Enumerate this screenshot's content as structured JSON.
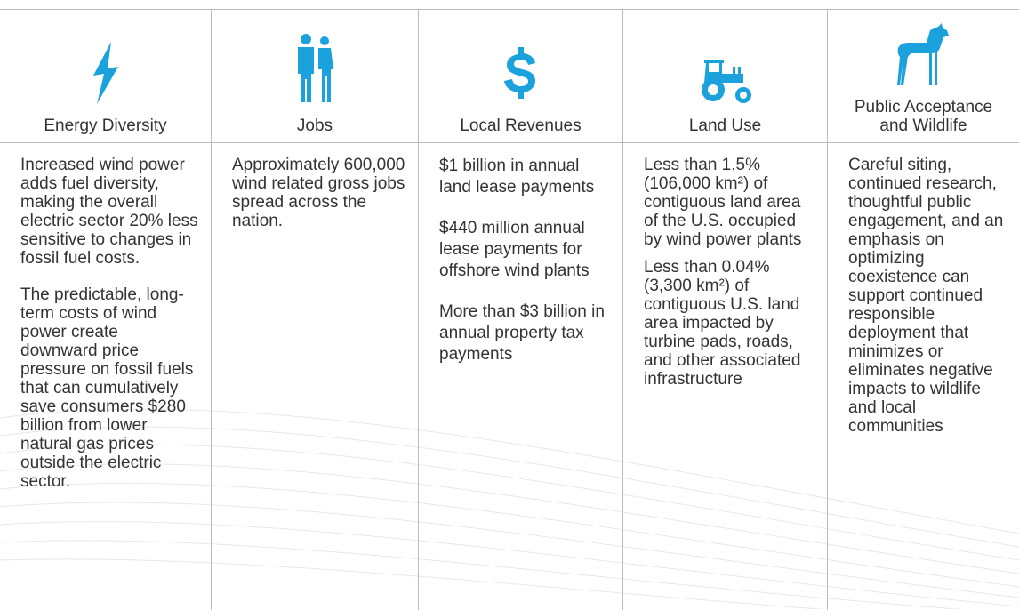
{
  "columns": [
    {
      "header": "Energy Diversity",
      "paragraphs": [
        "Increased wind power adds fuel diversity, making the overall electric sector 20% less sensitive to changes in fossil fuel costs.",
        "The predictable, long-term costs of wind power create downward price pressure on fossil fuels that can cumulatively save consumers $280 billion from lower natural gas prices outside the electric sector."
      ]
    },
    {
      "header": "Jobs",
      "paragraphs": [
        "Approximately 600,000 wind related gross jobs spread across the nation."
      ]
    },
    {
      "header": "Local Revenues",
      "paragraphs": [
        "$1 billion in annual land lease payments",
        "$440 million annual lease payments for offshore wind plants",
        "More than $3 billion in annual property tax payments"
      ]
    },
    {
      "header": "Land Use",
      "paragraphs": [
        "Less than 1.5% (106,000 km²) of contiguous land area of the U.S. occupied by wind power plants",
        "Less than 0.04% (3,300 km²) of contiguous U.S. land area impacted by turbine pads, roads, and other associated infrastructure"
      ]
    },
    {
      "header": "Public Acceptance and Wildlife",
      "paragraphs": [
        "Careful siting, continued research, thoughtful public engagement, and an emphasis on optimizing coexistence can support continued responsible deployment that minimizes or eliminates negative impacts to wildlife and local communities"
      ]
    }
  ]
}
